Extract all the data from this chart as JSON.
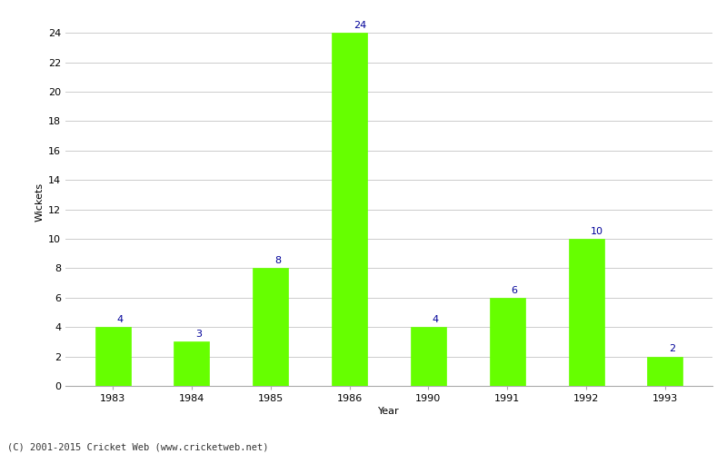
{
  "years": [
    "1983",
    "1984",
    "1985",
    "1986",
    "1990",
    "1991",
    "1992",
    "1993"
  ],
  "values": [
    4,
    3,
    8,
    24,
    4,
    6,
    10,
    2
  ],
  "bar_color": "#66ff00",
  "bar_edge_color": "#66ff00",
  "label_color": "#000099",
  "ylabel": "Wickets",
  "xlabel": "Year",
  "ylim": [
    0,
    25
  ],
  "yticks": [
    0,
    2,
    4,
    6,
    8,
    10,
    12,
    14,
    16,
    18,
    20,
    22,
    24
  ],
  "footer": "(C) 2001-2015 Cricket Web (www.cricketweb.net)",
  "background_color": "#ffffff",
  "grid_color": "#cccccc",
  "bar_width": 0.45,
  "label_fontsize": 8,
  "axis_tick_fontsize": 8,
  "axis_label_fontsize": 8,
  "footer_fontsize": 7.5
}
